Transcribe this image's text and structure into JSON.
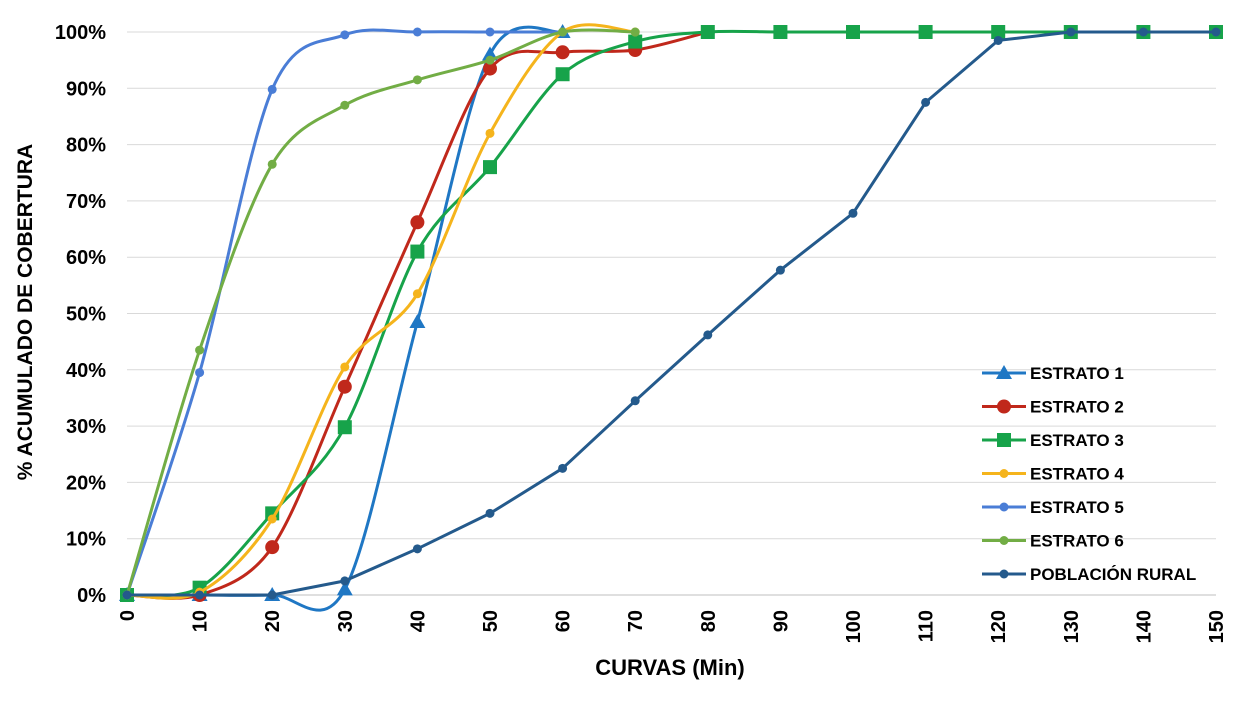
{
  "chart_data": {
    "type": "line",
    "title": "",
    "xlabel": "CURVAS (Min)",
    "ylabel": "% ACUMULADO  DE COBERTURA",
    "x": [
      0,
      10,
      20,
      30,
      40,
      50,
      60,
      70,
      80,
      90,
      100,
      110,
      120,
      130,
      140,
      150
    ],
    "x_tick_labels": [
      "0",
      "10",
      "20",
      "30",
      "40",
      "50",
      "60",
      "70",
      "80",
      "90",
      "100",
      "110",
      "120",
      "130",
      "140",
      "150"
    ],
    "y_tick_labels": [
      "0%",
      "10%",
      "20%",
      "30%",
      "40%",
      "50%",
      "60%",
      "70%",
      "80%",
      "90%",
      "100%"
    ],
    "xlim": [
      0,
      150
    ],
    "ylim": [
      0,
      1
    ],
    "grid": "horizontal",
    "legend_position": "bottom-right",
    "series": [
      {
        "name": "ESTRATO 1",
        "color": "#1f77c4",
        "marker": "triangle",
        "smooth": true,
        "x": [
          0,
          10,
          20,
          30,
          40,
          50,
          60
        ],
        "y": [
          0.0,
          0.0,
          0.0,
          0.01,
          0.485,
          0.96,
          1.0
        ]
      },
      {
        "name": "ESTRATO 2",
        "color": "#c0281b",
        "marker": "circle",
        "smooth": true,
        "x": [
          0,
          10,
          20,
          30,
          40,
          50,
          60,
          70,
          80
        ],
        "y": [
          0.0,
          0.0,
          0.085,
          0.37,
          0.662,
          0.935,
          0.964,
          0.968,
          1.0
        ]
      },
      {
        "name": "ESTRATO 3",
        "color": "#17a34a",
        "marker": "square",
        "smooth": true,
        "x": [
          0,
          10,
          20,
          30,
          40,
          50,
          60,
          70,
          80,
          90,
          100,
          110,
          120,
          130,
          140,
          150
        ],
        "y": [
          0.0,
          0.013,
          0.145,
          0.298,
          0.61,
          0.76,
          0.925,
          0.983,
          1.0,
          1.0,
          1.0,
          1.0,
          1.0,
          1.0,
          1.0,
          1.0
        ]
      },
      {
        "name": "ESTRATO 4",
        "color": "#f5b41c",
        "marker": "small-circle",
        "smooth": true,
        "x": [
          0,
          10,
          20,
          30,
          40,
          50,
          60,
          70
        ],
        "y": [
          0.0,
          0.005,
          0.135,
          0.405,
          0.535,
          0.82,
          1.0,
          1.0
        ]
      },
      {
        "name": "ESTRATO 5",
        "color": "#4a7dd6",
        "marker": "small-circle",
        "smooth": true,
        "x": [
          0,
          10,
          20,
          30,
          40,
          50,
          60
        ],
        "y": [
          0.0,
          0.395,
          0.898,
          0.995,
          1.0,
          1.0,
          1.0
        ]
      },
      {
        "name": "ESTRATO 6",
        "color": "#72ad45",
        "marker": "small-circle",
        "smooth": true,
        "x": [
          0,
          10,
          20,
          30,
          40,
          50,
          60,
          70
        ],
        "y": [
          0.0,
          0.435,
          0.765,
          0.87,
          0.915,
          0.95,
          1.0,
          1.0
        ]
      },
      {
        "name": "POBLACIÓN RURAL",
        "color": "#245a8c",
        "marker": "small-circle",
        "smooth": false,
        "x": [
          0,
          10,
          20,
          30,
          40,
          50,
          60,
          70,
          80,
          90,
          100,
          110,
          120,
          130,
          140,
          150
        ],
        "y": [
          0.0,
          0.0,
          0.0,
          0.025,
          0.082,
          0.145,
          0.225,
          0.345,
          0.462,
          0.577,
          0.678,
          0.875,
          0.985,
          1.0,
          1.0,
          1.0
        ]
      }
    ]
  }
}
